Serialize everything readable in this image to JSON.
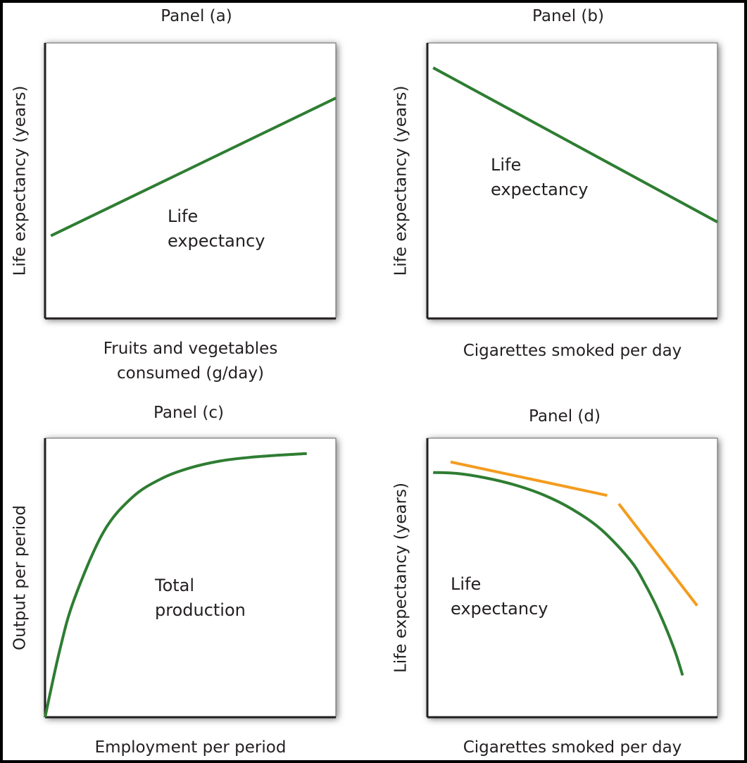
{
  "chart_data": [
    {
      "type": "line",
      "title": "Panel (a)",
      "xlabel": [
        "Fruits and vegetables",
        "consumed (g/day)"
      ],
      "ylabel": "Life expectancy (years)",
      "grid": false,
      "series": [
        {
          "name": "Life expectancy",
          "color": "#2e7d32",
          "x": [
            0.02,
            1.0
          ],
          "y": [
            0.3,
            0.8
          ]
        }
      ],
      "annotation": [
        "Life",
        "expectancy"
      ]
    },
    {
      "type": "line",
      "title": "Panel (b)",
      "xlabel": [
        "Cigarettes smoked per day"
      ],
      "ylabel": "Life expectancy (years)",
      "grid": false,
      "series": [
        {
          "name": "Life expectancy",
          "color": "#2e7d32",
          "x": [
            0.02,
            1.0
          ],
          "y": [
            0.91,
            0.35
          ]
        }
      ],
      "annotation": [
        "Life",
        "expectancy"
      ]
    },
    {
      "type": "line",
      "title": "Panel (c)",
      "xlabel": [
        "Employment per period"
      ],
      "ylabel": "Output per period",
      "grid": false,
      "series": [
        {
          "name": "Total production",
          "color": "#2e7d32",
          "x": [
            0.0,
            0.05,
            0.1,
            0.2,
            0.3,
            0.4,
            0.5,
            0.6,
            0.7,
            0.8,
            0.9
          ],
          "y": [
            0.0,
            0.238,
            0.422,
            0.662,
            0.788,
            0.855,
            0.894,
            0.918,
            0.931,
            0.939,
            0.945
          ]
        }
      ],
      "annotation": [
        "Total",
        "production"
      ]
    },
    {
      "type": "line",
      "title": "Panel (d)",
      "xlabel": [
        "Cigarettes smoked per day"
      ],
      "ylabel": "Life expectancy (years)",
      "grid": false,
      "series": [
        {
          "name": "Life expectancy",
          "color": "#2e7d32",
          "x": [
            0.02,
            0.1,
            0.2,
            0.3,
            0.4,
            0.5,
            0.6,
            0.7,
            0.75,
            0.8,
            0.85,
            0.88
          ],
          "y": [
            0.877,
            0.874,
            0.858,
            0.833,
            0.797,
            0.745,
            0.672,
            0.562,
            0.478,
            0.374,
            0.247,
            0.15
          ]
        },
        {
          "color": "#f39c1f",
          "x": [
            0.08,
            0.62
          ],
          "y": [
            0.915,
            0.795
          ]
        },
        {
          "color": "#f39c1f",
          "x": [
            0.66,
            0.93
          ],
          "y": [
            0.765,
            0.4
          ]
        }
      ],
      "annotation": [
        "Life",
        "expectancy"
      ]
    }
  ]
}
